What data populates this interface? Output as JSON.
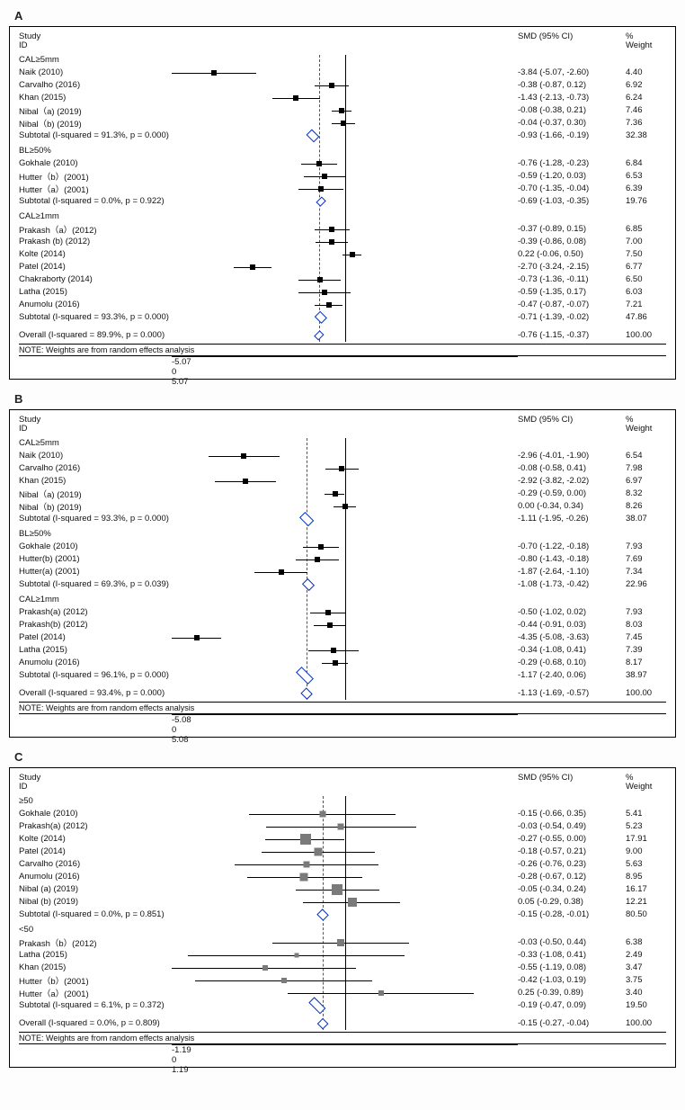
{
  "colors": {
    "zero_line": "#000000",
    "ref_line": "#d02020",
    "ci_line": "#000000",
    "point": "#000000",
    "point_grey": "#7a7a7a",
    "diamond_border": "#0030c0",
    "background": "#ffffff",
    "text": "#111111"
  },
  "note_text": "NOTE: Weights are from random effects analysis",
  "header": {
    "study": "Study",
    "id": "ID",
    "smd": "SMD (95% CI)",
    "pct": "%",
    "weight": "Weight"
  },
  "panels": [
    {
      "label": "A",
      "xmin": -5.07,
      "xmax": 5.07,
      "overall_est": -0.76,
      "axis_ticks": [
        {
          "v": -5.07,
          "t": "-5.07"
        },
        {
          "v": 0,
          "t": "0"
        },
        {
          "v": 5.07,
          "t": "5.07"
        }
      ],
      "overall": {
        "label": "Overall  (I-squared = 89.9%, p = 0.000)",
        "smd": "-0.76 (-1.15, -0.37)",
        "wt": "100.00",
        "est": -0.76,
        "lo": -1.15,
        "hi": -0.37
      },
      "groups": [
        {
          "title": "CAL≥5mm",
          "rows": [
            {
              "label": "Naik (2010)",
              "smd": "-3.84 (-5.07, -2.60)",
              "wt": "4.40",
              "est": -3.84,
              "lo": -5.07,
              "hi": -2.6
            },
            {
              "label": "Carvalho (2016)",
              "smd": "-0.38 (-0.87, 0.12)",
              "wt": "6.92",
              "est": -0.38,
              "lo": -0.87,
              "hi": 0.12
            },
            {
              "label": "Khan (2015)",
              "smd": "-1.43 (-2.13, -0.73)",
              "wt": "6.24",
              "est": -1.43,
              "lo": -2.13,
              "hi": -0.73
            },
            {
              "label": "Nibal（a) (2019)",
              "smd": "-0.08 (-0.38, 0.21)",
              "wt": "7.46",
              "est": -0.08,
              "lo": -0.38,
              "hi": 0.21
            },
            {
              "label": "Nibal（b) (2019)",
              "smd": "-0.04 (-0.37, 0.30)",
              "wt": "7.36",
              "est": -0.04,
              "lo": -0.37,
              "hi": 0.3
            }
          ],
          "subtotal": {
            "label": "Subtotal  (I-squared = 91.3%, p = 0.000)",
            "smd": "-0.93 (-1.66, -0.19)",
            "wt": "32.38",
            "est": -0.93,
            "lo": -1.66,
            "hi": -0.19
          }
        },
        {
          "title": "BL≥50%",
          "rows": [
            {
              "label": "Gokhale (2010)",
              "smd": "-0.76 (-1.28, -0.23)",
              "wt": "6.84",
              "est": -0.76,
              "lo": -1.28,
              "hi": -0.23
            },
            {
              "label": "Hutter（b）(2001)",
              "smd": "-0.59 (-1.20, 0.03)",
              "wt": "6.53",
              "est": -0.59,
              "lo": -1.2,
              "hi": 0.03
            },
            {
              "label": "Hutter（a）(2001)",
              "smd": "-0.70 (-1.35, -0.04)",
              "wt": "6.39",
              "est": -0.7,
              "lo": -1.35,
              "hi": -0.04
            }
          ],
          "subtotal": {
            "label": "Subtotal  (I-squared = 0.0%, p = 0.922)",
            "smd": "-0.69 (-1.03, -0.35)",
            "wt": "19.76",
            "est": -0.69,
            "lo": -1.03,
            "hi": -0.35
          }
        },
        {
          "title": "CAL≥1mm",
          "rows": [
            {
              "label": "Prakash（a）(2012)",
              "smd": "-0.37 (-0.89, 0.15)",
              "wt": "6.85",
              "est": -0.37,
              "lo": -0.89,
              "hi": 0.15
            },
            {
              "label": "Prakash (b) (2012)",
              "smd": "-0.39 (-0.86, 0.08)",
              "wt": "7.00",
              "est": -0.39,
              "lo": -0.86,
              "hi": 0.08
            },
            {
              "label": "Kolte (2014)",
              "smd": "0.22 (-0.06, 0.50)",
              "wt": "7.50",
              "est": 0.22,
              "lo": -0.06,
              "hi": 0.5
            },
            {
              "label": "Patel (2014)",
              "smd": "-2.70 (-3.24, -2.15)",
              "wt": "6.77",
              "est": -2.7,
              "lo": -3.24,
              "hi": -2.15
            },
            {
              "label": "Chakraborty (2014)",
              "smd": "-0.73 (-1.36, -0.11)",
              "wt": "6.50",
              "est": -0.73,
              "lo": -1.36,
              "hi": -0.11
            },
            {
              "label": "Latha (2015)",
              "smd": "-0.59 (-1.35, 0.17)",
              "wt": "6.03",
              "est": -0.59,
              "lo": -1.35,
              "hi": 0.17
            },
            {
              "label": "Anumolu (2016)",
              "smd": "-0.47 (-0.87, -0.07)",
              "wt": "7.21",
              "est": -0.47,
              "lo": -0.87,
              "hi": -0.07
            }
          ],
          "subtotal": {
            "label": "Subtotal  (I-squared = 93.3%, p = 0.000)",
            "smd": "-0.71 (-1.39, -0.02)",
            "wt": "47.86",
            "est": -0.71,
            "lo": -1.39,
            "hi": -0.02
          }
        }
      ]
    },
    {
      "label": "B",
      "xmin": -5.08,
      "xmax": 5.08,
      "overall_est": -1.13,
      "axis_ticks": [
        {
          "v": -5.08,
          "t": "-5.08"
        },
        {
          "v": 0,
          "t": "0"
        },
        {
          "v": 5.08,
          "t": "5.08"
        }
      ],
      "overall": {
        "label": "Overall  (I-squared = 93.4%, p = 0.000)",
        "smd": "-1.13 (-1.69, -0.57)",
        "wt": "100.00",
        "est": -1.13,
        "lo": -1.69,
        "hi": -0.57
      },
      "groups": [
        {
          "title": "CAL≥5mm",
          "rows": [
            {
              "label": "Naik (2010)",
              "smd": "-2.96 (-4.01, -1.90)",
              "wt": "6.54",
              "est": -2.96,
              "lo": -4.01,
              "hi": -1.9
            },
            {
              "label": "Carvalho (2016)",
              "smd": "-0.08 (-0.58, 0.41)",
              "wt": "7.98",
              "est": -0.08,
              "lo": -0.58,
              "hi": 0.41
            },
            {
              "label": "Khan (2015)",
              "smd": "-2.92 (-3.82, -2.02)",
              "wt": "6.97",
              "est": -2.92,
              "lo": -3.82,
              "hi": -2.02
            },
            {
              "label": "Nibal（a) (2019)",
              "smd": "-0.29 (-0.59, 0.00)",
              "wt": "8.32",
              "est": -0.29,
              "lo": -0.59,
              "hi": 0.0
            },
            {
              "label": "Nibal（b) (2019)",
              "smd": "0.00 (-0.34, 0.34)",
              "wt": "8.26",
              "est": 0.0,
              "lo": -0.34,
              "hi": 0.34
            }
          ],
          "subtotal": {
            "label": "Subtotal  (I-squared = 93.3%, p = 0.000)",
            "smd": "-1.11 (-1.95, -0.26)",
            "wt": "38.07",
            "est": -1.11,
            "lo": -1.95,
            "hi": -0.26
          }
        },
        {
          "title": "BL≥50%",
          "rows": [
            {
              "label": "Gokhale (2010)",
              "smd": "-0.70 (-1.22, -0.18)",
              "wt": "7.93",
              "est": -0.7,
              "lo": -1.22,
              "hi": -0.18
            },
            {
              "label": "Hutter(b) (2001)",
              "smd": "-0.80 (-1.43, -0.18)",
              "wt": "7.69",
              "est": -0.8,
              "lo": -1.43,
              "hi": -0.18
            },
            {
              "label": "Hutter(a) (2001)",
              "smd": "-1.87 (-2.64, -1.10)",
              "wt": "7.34",
              "est": -1.87,
              "lo": -2.64,
              "hi": -1.1
            }
          ],
          "subtotal": {
            "label": "Subtotal  (I-squared = 69.3%, p = 0.039)",
            "smd": "-1.08 (-1.73, -0.42)",
            "wt": "22.96",
            "est": -1.08,
            "lo": -1.73,
            "hi": -0.42
          }
        },
        {
          "title": "CAL≥1mm",
          "rows": [
            {
              "label": "Prakash(a) (2012)",
              "smd": "-0.50 (-1.02, 0.02)",
              "wt": "7.93",
              "est": -0.5,
              "lo": -1.02,
              "hi": 0.02
            },
            {
              "label": "Prakash(b) (2012)",
              "smd": "-0.44 (-0.91, 0.03)",
              "wt": "8.03",
              "est": -0.44,
              "lo": -0.91,
              "hi": 0.03
            },
            {
              "label": "Patel (2014)",
              "smd": "-4.35 (-5.08, -3.63)",
              "wt": "7.45",
              "est": -4.35,
              "lo": -5.08,
              "hi": -3.63
            },
            {
              "label": "Latha (2015)",
              "smd": "-0.34 (-1.08, 0.41)",
              "wt": "7.39",
              "est": -0.34,
              "lo": -1.08,
              "hi": 0.41
            },
            {
              "label": "Anumolu (2016)",
              "smd": "-0.29 (-0.68, 0.10)",
              "wt": "8.17",
              "est": -0.29,
              "lo": -0.68,
              "hi": 0.1
            }
          ],
          "subtotal": {
            "label": "Subtotal  (I-squared = 96.1%, p = 0.000)",
            "smd": "-1.17 (-2.40, 0.06)",
            "wt": "38.97",
            "est": -1.17,
            "lo": -2.4,
            "hi": 0.06
          }
        }
      ]
    },
    {
      "label": "C",
      "xmin": -1.19,
      "xmax": 1.19,
      "overall_est": -0.15,
      "grey_points": true,
      "axis_ticks": [
        {
          "v": -1.19,
          "t": "-1.19"
        },
        {
          "v": 0,
          "t": "0"
        },
        {
          "v": 1.19,
          "t": "1.19"
        }
      ],
      "overall": {
        "label": "Overall  (I-squared = 0.0%, p = 0.809)",
        "smd": "-0.15 (-0.27, -0.04)",
        "wt": "100.00",
        "est": -0.15,
        "lo": -0.27,
        "hi": -0.04
      },
      "groups": [
        {
          "title": "≥50",
          "rows": [
            {
              "label": "Gokhale (2010)",
              "smd": "-0.15 (-0.66, 0.35)",
              "wt": "5.41",
              "est": -0.15,
              "lo": -0.66,
              "hi": 0.35,
              "ptw": 7
            },
            {
              "label": "Prakash(a) (2012)",
              "smd": "-0.03 (-0.54, 0.49)",
              "wt": "5.23",
              "est": -0.03,
              "lo": -0.54,
              "hi": 0.49,
              "ptw": 7
            },
            {
              "label": "Kolte (2014)",
              "smd": "-0.27 (-0.55, 0.00)",
              "wt": "17.91",
              "est": -0.27,
              "lo": -0.55,
              "hi": 0.0,
              "ptw": 12
            },
            {
              "label": "Patel (2014)",
              "smd": "-0.18 (-0.57, 0.21)",
              "wt": "9.00",
              "est": -0.18,
              "lo": -0.57,
              "hi": 0.21,
              "ptw": 9
            },
            {
              "label": "Carvalho (2016)",
              "smd": "-0.26 (-0.76, 0.23)",
              "wt": "5.63",
              "est": -0.26,
              "lo": -0.76,
              "hi": 0.23,
              "ptw": 7
            },
            {
              "label": "Anumolu (2016)",
              "smd": "-0.28 (-0.67, 0.12)",
              "wt": "8.95",
              "est": -0.28,
              "lo": -0.67,
              "hi": 0.12,
              "ptw": 9
            },
            {
              "label": "Nibal (a) (2019)",
              "smd": "-0.05 (-0.34, 0.24)",
              "wt": "16.17",
              "est": -0.05,
              "lo": -0.34,
              "hi": 0.24,
              "ptw": 12
            },
            {
              "label": "Nibal (b) (2019)",
              "smd": "0.05 (-0.29, 0.38)",
              "wt": "12.21",
              "est": 0.05,
              "lo": -0.29,
              "hi": 0.38,
              "ptw": 10
            }
          ],
          "subtotal": {
            "label": "Subtotal  (I-squared = 0.0%, p = 0.851)",
            "smd": "-0.15 (-0.28, -0.01)",
            "wt": "80.50",
            "est": -0.15,
            "lo": -0.28,
            "hi": -0.01
          }
        },
        {
          "title": "<50",
          "rows": [
            {
              "label": "Prakash（b）(2012)",
              "smd": "-0.03 (-0.50, 0.44)",
              "wt": "6.38",
              "est": -0.03,
              "lo": -0.5,
              "hi": 0.44,
              "ptw": 8
            },
            {
              "label": "Latha (2015)",
              "smd": "-0.33 (-1.08, 0.41)",
              "wt": "2.49",
              "est": -0.33,
              "lo": -1.08,
              "hi": 0.41,
              "ptw": 5
            },
            {
              "label": "Khan (2015)",
              "smd": "-0.55 (-1.19, 0.08)",
              "wt": "3.47",
              "est": -0.55,
              "lo": -1.19,
              "hi": 0.08,
              "ptw": 6
            },
            {
              "label": "Hutter（b）(2001)",
              "smd": "-0.42 (-1.03, 0.19)",
              "wt": "3.75",
              "est": -0.42,
              "lo": -1.03,
              "hi": 0.19,
              "ptw": 6
            },
            {
              "label": "Hutter（a）(2001)",
              "smd": "0.25 (-0.39, 0.89)",
              "wt": "3.40",
              "est": 0.25,
              "lo": -0.39,
              "hi": 0.89,
              "ptw": 6
            }
          ],
          "subtotal": {
            "label": "Subtotal  (I-squared = 6.1%, p = 0.372)",
            "smd": "-0.19 (-0.47, 0.09)",
            "wt": "19.50",
            "est": -0.19,
            "lo": -0.47,
            "hi": 0.09
          }
        }
      ]
    }
  ]
}
